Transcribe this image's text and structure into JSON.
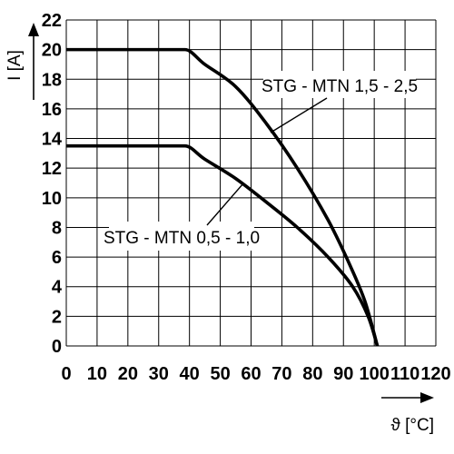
{
  "chart_data": {
    "type": "line",
    "x": {
      "label": "ϑ [°C]",
      "min": 0,
      "max": 120,
      "ticks": [
        0,
        10,
        20,
        30,
        40,
        50,
        60,
        70,
        80,
        90,
        100,
        110,
        120
      ]
    },
    "y": {
      "label": "I [A]",
      "min": 0,
      "max": 22,
      "ticks": [
        0,
        2,
        4,
        6,
        8,
        10,
        12,
        14,
        16,
        18,
        20,
        22
      ]
    },
    "grid": true,
    "series": [
      {
        "name": "STG - MTN 1,5 - 2,5",
        "points": [
          [
            0,
            20
          ],
          [
            38.5,
            20
          ],
          [
            45,
            19
          ],
          [
            55,
            17.5
          ],
          [
            65,
            15
          ],
          [
            75,
            12
          ],
          [
            85,
            8.5
          ],
          [
            92,
            5.5
          ],
          [
            97,
            3
          ],
          [
            101,
            0
          ]
        ]
      },
      {
        "name": "STG - MTN 0,5 - 1,0",
        "points": [
          [
            0,
            13.5
          ],
          [
            38.5,
            13.5
          ],
          [
            45,
            12.6
          ],
          [
            55,
            11.3
          ],
          [
            65,
            9.7
          ],
          [
            75,
            8
          ],
          [
            85,
            6
          ],
          [
            93,
            4
          ],
          [
            98,
            2
          ],
          [
            101,
            0
          ]
        ]
      }
    ]
  }
}
